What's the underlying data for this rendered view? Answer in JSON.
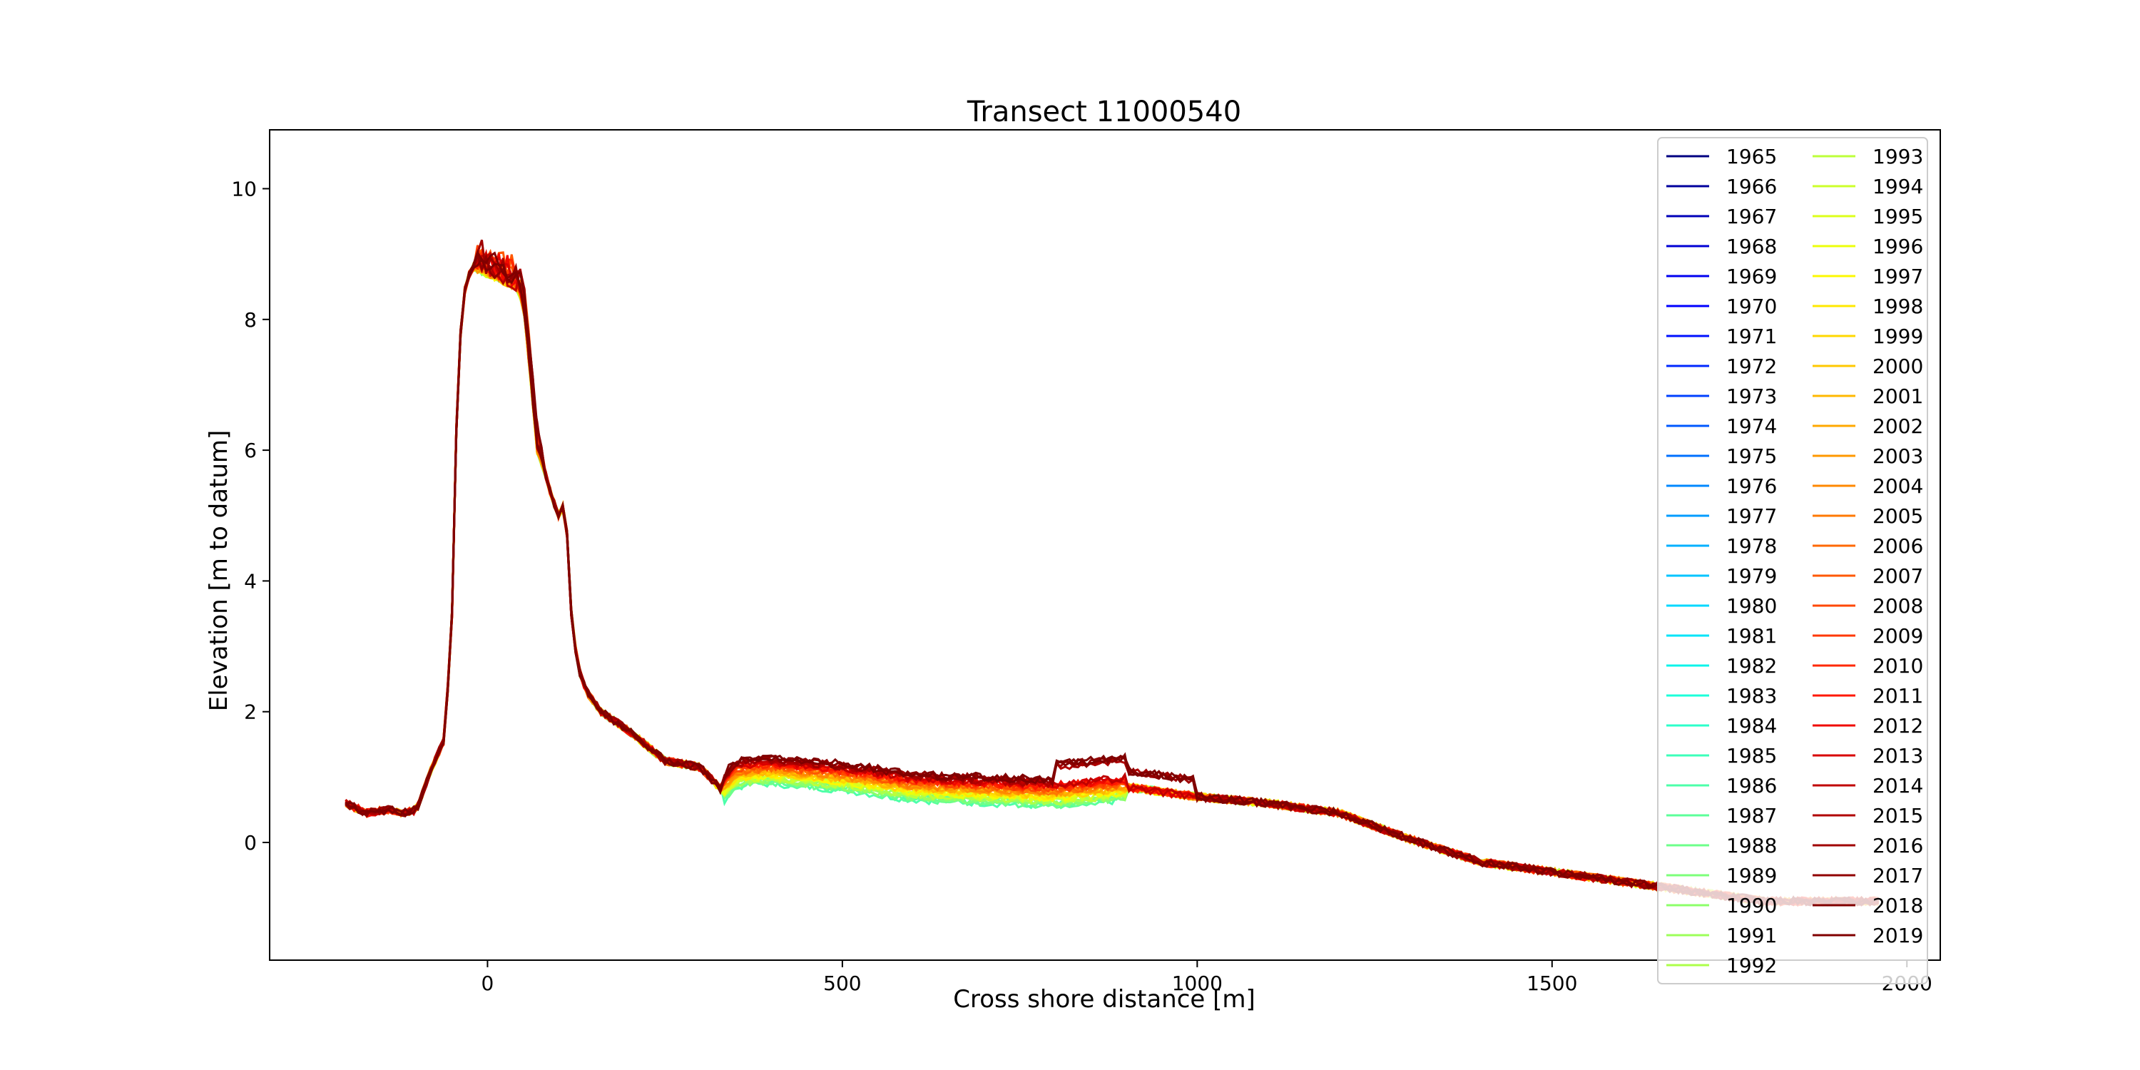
{
  "chart_data": {
    "type": "line",
    "title": "Transect 11000540",
    "xlabel": "Cross shore distance [m]",
    "ylabel": "Elevation [m to datum]",
    "xlim": [
      -307,
      2047
    ],
    "ylim": [
      -1.8,
      10.9
    ],
    "xticks": [
      0,
      500,
      1000,
      1500,
      2000
    ],
    "yticks": [
      0,
      2,
      4,
      6,
      8,
      10
    ],
    "grid": false,
    "legend_placement": "right",
    "legend_columns": 2,
    "colormap": "jet",
    "series": [
      {
        "name": "1965",
        "color": "#000080"
      },
      {
        "name": "1966",
        "color": "#00009c"
      },
      {
        "name": "1967",
        "color": "#0000b8"
      },
      {
        "name": "1968",
        "color": "#0000d4"
      },
      {
        "name": "1969",
        "color": "#0000f0"
      },
      {
        "name": "1970",
        "color": "#0000ff"
      },
      {
        "name": "1971",
        "color": "#0010ff"
      },
      {
        "name": "1972",
        "color": "#0028ff"
      },
      {
        "name": "1973",
        "color": "#0040ff"
      },
      {
        "name": "1974",
        "color": "#0058ff"
      },
      {
        "name": "1975",
        "color": "#0070ff"
      },
      {
        "name": "1976",
        "color": "#0088ff"
      },
      {
        "name": "1977",
        "color": "#009cff"
      },
      {
        "name": "1978",
        "color": "#00b0ff"
      },
      {
        "name": "1979",
        "color": "#00c4ff"
      },
      {
        "name": "1980",
        "color": "#00d8ff"
      },
      {
        "name": "1981",
        "color": "#00e4f8"
      },
      {
        "name": "1982",
        "color": "#0cf4ea"
      },
      {
        "name": "1983",
        "color": "#1cffda"
      },
      {
        "name": "1984",
        "color": "#2cffca"
      },
      {
        "name": "1985",
        "color": "#3cffba"
      },
      {
        "name": "1986",
        "color": "#4cffaa"
      },
      {
        "name": "1987",
        "color": "#5cff9a"
      },
      {
        "name": "1988",
        "color": "#6cff8a"
      },
      {
        "name": "1989",
        "color": "#7cff7a"
      },
      {
        "name": "1990",
        "color": "#8cff6a"
      },
      {
        "name": "1991",
        "color": "#9cff5a"
      },
      {
        "name": "1992",
        "color": "#acff4a"
      },
      {
        "name": "1993",
        "color": "#bcff3a"
      },
      {
        "name": "1994",
        "color": "#ccff2a"
      },
      {
        "name": "1995",
        "color": "#dcff1a"
      },
      {
        "name": "1996",
        "color": "#ecff0a"
      },
      {
        "name": "1997",
        "color": "#fcf800"
      },
      {
        "name": "1998",
        "color": "#ffe800"
      },
      {
        "name": "1999",
        "color": "#ffd800"
      },
      {
        "name": "2000",
        "color": "#ffc800"
      },
      {
        "name": "2001",
        "color": "#ffb800"
      },
      {
        "name": "2002",
        "color": "#ffa800"
      },
      {
        "name": "2003",
        "color": "#ff9800"
      },
      {
        "name": "2004",
        "color": "#ff8800"
      },
      {
        "name": "2005",
        "color": "#ff7800"
      },
      {
        "name": "2006",
        "color": "#ff6800"
      },
      {
        "name": "2007",
        "color": "#ff5800"
      },
      {
        "name": "2008",
        "color": "#ff4800"
      },
      {
        "name": "2009",
        "color": "#ff3800"
      },
      {
        "name": "2010",
        "color": "#ff2800"
      },
      {
        "name": "2011",
        "color": "#ff1800"
      },
      {
        "name": "2012",
        "color": "#f00800"
      },
      {
        "name": "2013",
        "color": "#d80000"
      },
      {
        "name": "2014",
        "color": "#c00000"
      },
      {
        "name": "2015",
        "color": "#b00000"
      },
      {
        "name": "2016",
        "color": "#a00000"
      },
      {
        "name": "2017",
        "color": "#900000"
      },
      {
        "name": "2018",
        "color": "#800000"
      },
      {
        "name": "2019",
        "color": "#800000"
      }
    ],
    "plotted_years": [
      "1986",
      "1987",
      "1988",
      "1989",
      "1990",
      "1991",
      "1992",
      "1993",
      "1994",
      "1995",
      "1996",
      "1997",
      "1998",
      "1999",
      "2000",
      "2001",
      "2002",
      "2003",
      "2004",
      "2005",
      "2006",
      "2007",
      "2008",
      "2009",
      "2010",
      "2011",
      "2012",
      "2013",
      "2014",
      "2015",
      "2016",
      "2017",
      "2018",
      "2019"
    ],
    "profile_x": [
      -200,
      -170,
      -140,
      -120,
      -100,
      -80,
      -60,
      -50,
      -45,
      -40,
      -35,
      -30,
      -20,
      -10,
      0,
      20,
      40,
      50,
      60,
      70,
      80,
      90,
      100,
      105,
      110,
      115,
      120,
      130,
      140,
      160,
      200,
      250,
      300,
      330,
      350,
      400,
      450,
      500,
      600,
      700,
      800,
      900,
      1000,
      1100,
      1200,
      1300,
      1400,
      1500,
      1600,
      1700,
      1800
    ],
    "profile_y": [
      0.6,
      0.45,
      0.5,
      0.45,
      0.5,
      1.1,
      1.6,
      3.5,
      6.0,
      7.5,
      8.2,
      8.6,
      8.8,
      8.75,
      8.7,
      8.6,
      8.5,
      8.3,
      7.2,
      6.0,
      5.7,
      5.3,
      5.0,
      5.1,
      5.2,
      4.0,
      3.2,
      2.6,
      2.3,
      2.0,
      1.7,
      1.25,
      1.15,
      0.8,
      1.05,
      1.1,
      1.05,
      1.0,
      0.85,
      0.8,
      0.75,
      0.85,
      0.7,
      0.6,
      0.45,
      0.05,
      -0.3,
      -0.45,
      -0.6,
      -0.75,
      -0.9
    ]
  }
}
